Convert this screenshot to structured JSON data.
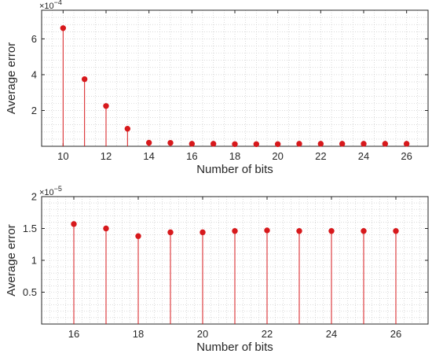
{
  "chart_data": [
    {
      "type": "stem",
      "xlabel": "Number of bits",
      "ylabel": "Average error",
      "y_exponent": "×10",
      "y_exponent_power": "−4",
      "xlim": [
        9,
        27
      ],
      "ylim": [
        0,
        7.6
      ],
      "xticks": [
        10,
        12,
        14,
        16,
        18,
        20,
        22,
        24,
        26
      ],
      "xtick_labels": [
        "10",
        "12",
        "14",
        "16",
        "18",
        "20",
        "22",
        "24",
        "26"
      ],
      "yticks": [
        2,
        4,
        6
      ],
      "ytick_labels": [
        "2",
        "4",
        "6"
      ],
      "grid": "minor dotted",
      "series": [
        {
          "color": "#d7191c",
          "x": [
            10,
            11,
            12,
            13,
            14,
            15,
            16,
            17,
            18,
            19,
            20,
            21,
            22,
            23,
            24,
            25,
            26
          ],
          "y": [
            6.6,
            3.75,
            2.25,
            0.98,
            0.2,
            0.19,
            0.14,
            0.14,
            0.12,
            0.12,
            0.12,
            0.14,
            0.14,
            0.14,
            0.14,
            0.14,
            0.14
          ]
        }
      ]
    },
    {
      "type": "stem",
      "xlabel": "Number of bits",
      "ylabel": "Average error",
      "y_exponent": "×10",
      "y_exponent_power": "−5",
      "xlim": [
        15,
        27
      ],
      "ylim": [
        0,
        2
      ],
      "xticks": [
        16,
        18,
        20,
        22,
        24,
        26
      ],
      "xtick_labels": [
        "16",
        "18",
        "20",
        "22",
        "24",
        "26"
      ],
      "yticks": [
        0.5,
        1,
        1.5,
        2
      ],
      "ytick_labels": [
        "0.5",
        "1",
        "1.5",
        "2"
      ],
      "grid": "minor dotted",
      "series": [
        {
          "color": "#d7191c",
          "x": [
            16,
            17,
            18,
            19,
            20,
            21,
            22,
            23,
            24,
            25,
            26
          ],
          "y": [
            1.57,
            1.5,
            1.38,
            1.44,
            1.44,
            1.46,
            1.47,
            1.46,
            1.46,
            1.46,
            1.46
          ]
        }
      ]
    }
  ]
}
